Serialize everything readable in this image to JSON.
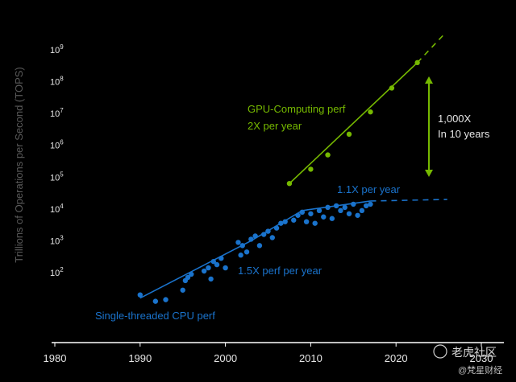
{
  "chart_data": {
    "type": "scatter",
    "title": "",
    "xlabel": "",
    "ylabel": "Trillions of Operations per Second (TOPS)",
    "y_scale": "log",
    "xlim": [
      1980,
      2030
    ],
    "ylim_exponent": [
      1,
      9
    ],
    "x_ticks": [
      "1980",
      "1990",
      "2000",
      "2010",
      "2020",
      "2030"
    ],
    "y_ticks": [
      {
        "base": "10",
        "exp": "2"
      },
      {
        "base": "10",
        "exp": "3"
      },
      {
        "base": "10",
        "exp": "4"
      },
      {
        "base": "10",
        "exp": "5"
      },
      {
        "base": "10",
        "exp": "6"
      },
      {
        "base": "10",
        "exp": "7"
      },
      {
        "base": "10",
        "exp": "8"
      },
      {
        "base": "10",
        "exp": "9"
      }
    ],
    "colors": {
      "gpu": "#76b900",
      "cpu": "#1a73cc",
      "arrow": "#76b900",
      "axis": "#ffffff"
    },
    "series": [
      {
        "name": "GPU-Computing perf",
        "points": [
          [
            2007.5,
            4.8
          ],
          [
            2010,
            5.25
          ],
          [
            2012,
            5.7
          ],
          [
            2014.5,
            6.35
          ],
          [
            2017,
            7.05
          ],
          [
            2019.5,
            7.8
          ],
          [
            2022.5,
            8.6
          ]
        ],
        "trend": [
          [
            2007.5,
            4.8
          ],
          [
            2022.5,
            8.6
          ]
        ],
        "projection": [
          [
            2022.5,
            8.6
          ],
          [
            2025.5,
            9.45
          ]
        ]
      },
      {
        "name": "Single-threaded CPU perf",
        "points": [
          [
            1990,
            1.3
          ],
          [
            1991.8,
            1.1
          ],
          [
            1993,
            1.15
          ],
          [
            1995,
            1.45
          ],
          [
            1995.3,
            1.75
          ],
          [
            1995.6,
            1.85
          ],
          [
            1996,
            1.95
          ],
          [
            1997.5,
            2.05
          ],
          [
            1998,
            2.15
          ],
          [
            1998.3,
            1.8
          ],
          [
            1998.6,
            2.35
          ],
          [
            1999,
            2.25
          ],
          [
            1999.5,
            2.45
          ],
          [
            2000,
            2.15
          ],
          [
            2001.5,
            2.95
          ],
          [
            2001.8,
            2.55
          ],
          [
            2002,
            2.85
          ],
          [
            2002.5,
            2.65
          ],
          [
            2003,
            3.05
          ],
          [
            2003.5,
            3.15
          ],
          [
            2004,
            2.85
          ],
          [
            2004.5,
            3.2
          ],
          [
            2005,
            3.3
          ],
          [
            2005.5,
            3.1
          ],
          [
            2006,
            3.4
          ],
          [
            2006.5,
            3.55
          ],
          [
            2007,
            3.6
          ],
          [
            2008,
            3.65
          ],
          [
            2008.5,
            3.8
          ],
          [
            2009,
            3.9
          ],
          [
            2009.5,
            3.6
          ],
          [
            2010,
            3.85
          ],
          [
            2010.5,
            3.55
          ],
          [
            2011,
            3.95
          ],
          [
            2011.5,
            3.75
          ],
          [
            2012,
            4.05
          ],
          [
            2012.5,
            3.7
          ],
          [
            2013,
            4.1
          ],
          [
            2013.5,
            3.95
          ],
          [
            2014,
            4.05
          ],
          [
            2014.5,
            3.85
          ],
          [
            2015,
            4.15
          ],
          [
            2015.5,
            3.8
          ],
          [
            2016,
            3.95
          ],
          [
            2016.5,
            4.1
          ],
          [
            2017,
            4.15
          ]
        ],
        "trend": [
          [
            1990,
            1.2
          ],
          [
            2003,
            3.0
          ],
          [
            2009,
            3.95
          ],
          [
            2017,
            4.25
          ]
        ],
        "projection": [
          [
            2017,
            4.25
          ],
          [
            2026,
            4.3
          ]
        ]
      }
    ],
    "annotations": {
      "gpu_label": "GPU-Computing perf",
      "gpu_rate": "2X per year",
      "cpu_early_rate": "1.5X perf per year",
      "cpu_late_rate": "1.1X per year",
      "cpu_label": "Single-threaded CPU perf",
      "gap_label_1": "1,000X",
      "gap_label_2": "In 10 years"
    }
  },
  "watermark": {
    "main": "老虎社区",
    "sub": "@梵星财经"
  }
}
